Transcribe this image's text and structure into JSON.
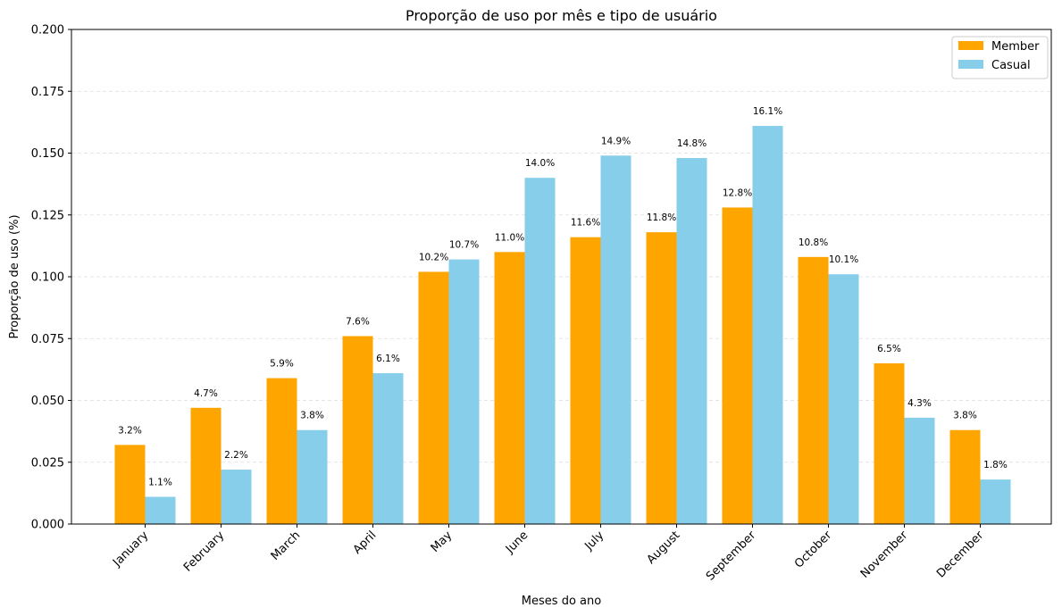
{
  "chart_data": {
    "type": "bar",
    "title": "Proporção de uso por mês e tipo de usuário",
    "xlabel": "Meses do ano",
    "ylabel": "Proporção de uso (%)",
    "ylim": [
      0,
      0.2
    ],
    "yticks": [
      "0.000",
      "0.025",
      "0.050",
      "0.075",
      "0.100",
      "0.125",
      "0.150",
      "0.175",
      "0.200"
    ],
    "categories": [
      "January",
      "February",
      "March",
      "April",
      "May",
      "June",
      "July",
      "August",
      "September",
      "October",
      "November",
      "December"
    ],
    "grid": "y-dashed",
    "legend_position": "top-right",
    "series": [
      {
        "name": "Member",
        "color": "#FFA500",
        "values": [
          0.032,
          0.047,
          0.059,
          0.076,
          0.102,
          0.11,
          0.116,
          0.118,
          0.128,
          0.108,
          0.065,
          0.038
        ],
        "labels": [
          "3.2%",
          "4.7%",
          "5.9%",
          "7.6%",
          "10.2%",
          "11.0%",
          "11.6%",
          "11.8%",
          "12.8%",
          "10.8%",
          "6.5%",
          "3.8%"
        ]
      },
      {
        "name": "Casual",
        "color": "#87CEEB",
        "values": [
          0.011,
          0.022,
          0.038,
          0.061,
          0.107,
          0.14,
          0.149,
          0.148,
          0.161,
          0.101,
          0.043,
          0.018
        ],
        "labels": [
          "1.1%",
          "2.2%",
          "3.8%",
          "6.1%",
          "10.7%",
          "14.0%",
          "14.9%",
          "14.8%",
          "16.1%",
          "10.1%",
          "4.3%",
          "1.8%"
        ]
      }
    ]
  }
}
